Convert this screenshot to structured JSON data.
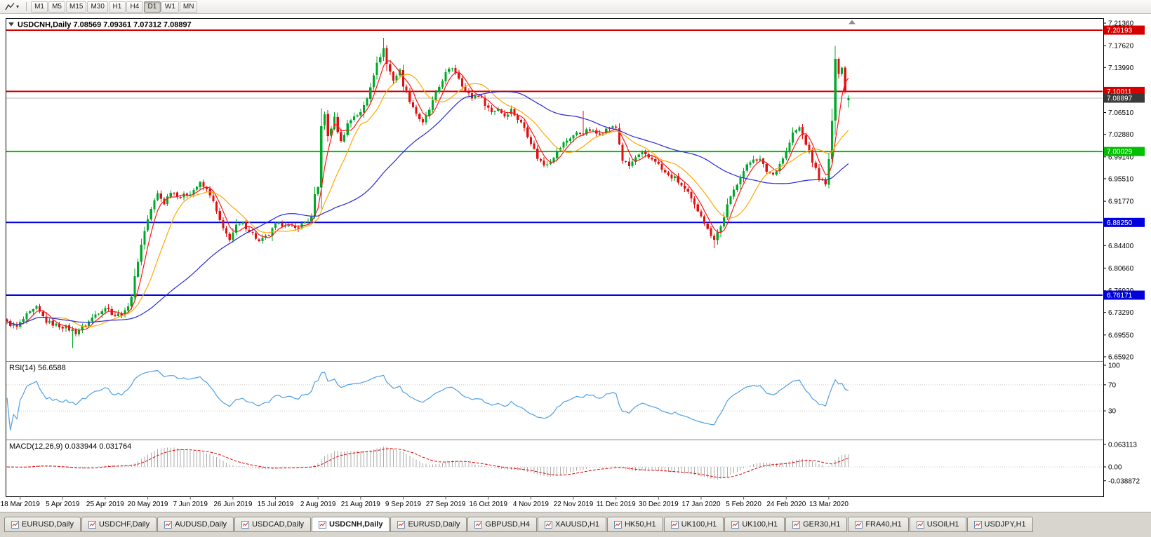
{
  "toolbar": {
    "timeframes": [
      "M1",
      "M5",
      "M15",
      "M30",
      "H1",
      "H4",
      "D1",
      "W1",
      "MN"
    ],
    "active_timeframe": "D1"
  },
  "chart": {
    "symbol": "USDCNH",
    "timeframe": "Daily",
    "title_text": "USDCNH,Daily 7.08569 7.09361 7.07312 7.08897",
    "open": "7.08569",
    "high": "7.09361",
    "low": "7.07312",
    "close": "7.08897"
  },
  "price_scale": {
    "ticks": [
      "7.21360",
      "7.17620",
      "7.13990",
      "7.10250",
      "7.06510",
      "7.02880",
      "6.99140",
      "6.95510",
      "6.91770",
      "6.88030",
      "6.84400",
      "6.80660",
      "6.76920",
      "6.73290",
      "6.69550",
      "6.65920"
    ],
    "levels": [
      {
        "value": "7.20193",
        "price": 7.20193,
        "color": "#D40000"
      },
      {
        "value": "7.10011",
        "price": 7.10011,
        "color": "#D40000"
      },
      {
        "value": "7.00029",
        "price": 7.00029,
        "color": "#00BE00"
      },
      {
        "value": "6.88250",
        "price": 6.8825,
        "color": "#0000DE"
      },
      {
        "value": "6.76171",
        "price": 6.76171,
        "color": "#0000DE"
      }
    ],
    "bid": {
      "value": "7.08897",
      "price": 7.08897,
      "label_bg": "#3A3A3A",
      "line_color": "#B8B8B8"
    }
  },
  "indicators": {
    "rsi": {
      "label": "RSI(14) 56.6588",
      "period": 14,
      "value": "56.6588",
      "ticks": [
        "100",
        "70",
        "30"
      ],
      "level_lines": [
        70,
        30
      ],
      "color": "#4D9FE6"
    },
    "macd": {
      "label": "MACD(12,26,9) 0.033944 0.031764",
      "fast": 12,
      "slow": 26,
      "signal": 9,
      "main_value": "0.033944",
      "signal_value": "0.031764",
      "ticks": [
        "0.063113",
        "0.00",
        "-0.038872"
      ],
      "histogram_color": "#ABABAB",
      "signal_color": "#E00000"
    }
  },
  "time_axis": {
    "labels": [
      "18 Mar 2019",
      "5 Apr 2019",
      "25 Apr 2019",
      "20 May 2019",
      "7 Jun 2019",
      "26 Jun 2019",
      "15 Jul 2019",
      "2 Aug 2019",
      "21 Aug 2019",
      "9 Sep 2019",
      "27 Sep 2019",
      "16 Oct 2019",
      "4 Nov 2019",
      "22 Nov 2019",
      "11 Dec 2019",
      "30 Dec 2019",
      "17 Jan 2020",
      "5 Feb 2020",
      "24 Feb 2020",
      "13 Mar 2020"
    ]
  },
  "tabs": {
    "items": [
      "EURUSD,Daily",
      "USDCHF,Daily",
      "AUDUSD,Daily",
      "USDCAD,Daily",
      "USDCNH,Daily",
      "EURUSD,Daily",
      "GBPUSD,H4",
      "XAUUSD,H1",
      "HK50,H1",
      "UK100,H1",
      "UK100,H1",
      "GER30,H1",
      "FRA40,H1",
      "USOil,H1",
      "USDJPY,H1"
    ],
    "active_index": 4
  },
  "chart_data": {
    "type": "candlestick",
    "symbol": "USDCNH",
    "timeframe": "Daily",
    "bars_total": 258,
    "ylim": [
      6.6592,
      7.2136
    ],
    "bull_color": "#00A82A",
    "bear_color": "#E01010",
    "close_anchors": [
      [
        0,
        6.716
      ],
      [
        3,
        6.708
      ],
      [
        6,
        6.728
      ],
      [
        9,
        6.74
      ],
      [
        12,
        6.718
      ],
      [
        15,
        6.712
      ],
      [
        18,
        6.708
      ],
      [
        21,
        6.7
      ],
      [
        24,
        6.712
      ],
      [
        27,
        6.73
      ],
      [
        30,
        6.742
      ],
      [
        33,
        6.728
      ],
      [
        36,
        6.733
      ],
      [
        38,
        6.76
      ],
      [
        40,
        6.82
      ],
      [
        42,
        6.87
      ],
      [
        44,
        6.905
      ],
      [
        46,
        6.93
      ],
      [
        48,
        6.915
      ],
      [
        50,
        6.935
      ],
      [
        53,
        6.925
      ],
      [
        56,
        6.932
      ],
      [
        59,
        6.947
      ],
      [
        62,
        6.93
      ],
      [
        64,
        6.9
      ],
      [
        66,
        6.87
      ],
      [
        68,
        6.856
      ],
      [
        70,
        6.876
      ],
      [
        72,
        6.88
      ],
      [
        75,
        6.864
      ],
      [
        77,
        6.85
      ],
      [
        80,
        6.862
      ],
      [
        82,
        6.878
      ],
      [
        85,
        6.88
      ],
      [
        88,
        6.872
      ],
      [
        90,
        6.88
      ],
      [
        92,
        6.886
      ],
      [
        93,
        6.89
      ],
      [
        94,
        6.926
      ],
      [
        95,
        6.94
      ],
      [
        96,
        7.045
      ],
      [
        97,
        7.06
      ],
      [
        98,
        7.026
      ],
      [
        100,
        7.055
      ],
      [
        102,
        7.016
      ],
      [
        104,
        7.046
      ],
      [
        106,
        7.06
      ],
      [
        108,
        7.064
      ],
      [
        110,
        7.09
      ],
      [
        112,
        7.13
      ],
      [
        114,
        7.16
      ],
      [
        115,
        7.172
      ],
      [
        116,
        7.146
      ],
      [
        118,
        7.12
      ],
      [
        120,
        7.134
      ],
      [
        121,
        7.112
      ],
      [
        123,
        7.086
      ],
      [
        125,
        7.064
      ],
      [
        127,
        7.046
      ],
      [
        129,
        7.07
      ],
      [
        131,
        7.096
      ],
      [
        133,
        7.12
      ],
      [
        134,
        7.13
      ],
      [
        136,
        7.14
      ],
      [
        138,
        7.124
      ],
      [
        140,
        7.1
      ],
      [
        142,
        7.09
      ],
      [
        144,
        7.095
      ],
      [
        146,
        7.08
      ],
      [
        148,
        7.066
      ],
      [
        150,
        7.072
      ],
      [
        152,
        7.06
      ],
      [
        154,
        7.07
      ],
      [
        156,
        7.054
      ],
      [
        158,
        7.04
      ],
      [
        160,
        7.016
      ],
      [
        162,
        6.99
      ],
      [
        164,
        6.978
      ],
      [
        166,
        6.986
      ],
      [
        168,
        7.0
      ],
      [
        170,
        7.014
      ],
      [
        172,
        7.024
      ],
      [
        174,
        7.03
      ],
      [
        176,
        7.032
      ],
      [
        178,
        7.036
      ],
      [
        180,
        7.03
      ],
      [
        182,
        7.034
      ],
      [
        184,
        7.04
      ],
      [
        186,
        7.04
      ],
      [
        188,
        6.986
      ],
      [
        190,
        6.976
      ],
      [
        192,
        6.99
      ],
      [
        194,
        6.996
      ],
      [
        196,
        6.99
      ],
      [
        198,
        6.986
      ],
      [
        200,
        6.97
      ],
      [
        202,
        6.96
      ],
      [
        204,
        6.956
      ],
      [
        206,
        6.944
      ],
      [
        208,
        6.93
      ],
      [
        210,
        6.91
      ],
      [
        212,
        6.896
      ],
      [
        214,
        6.87
      ],
      [
        216,
        6.856
      ],
      [
        218,
        6.876
      ],
      [
        220,
        6.91
      ],
      [
        222,
        6.936
      ],
      [
        224,
        6.96
      ],
      [
        226,
        6.976
      ],
      [
        228,
        6.99
      ],
      [
        230,
        6.986
      ],
      [
        232,
        6.968
      ],
      [
        234,
        6.962
      ],
      [
        236,
        6.98
      ],
      [
        238,
        7.0
      ],
      [
        240,
        7.03
      ],
      [
        242,
        7.04
      ],
      [
        244,
        7.014
      ],
      [
        246,
        6.984
      ],
      [
        248,
        6.958
      ],
      [
        250,
        6.944
      ],
      [
        251,
        6.988
      ],
      [
        252,
        7.05
      ],
      [
        253,
        7.155
      ],
      [
        254,
        7.13
      ],
      [
        255,
        7.14
      ],
      [
        256,
        7.1
      ],
      [
        257,
        7.089
      ]
    ],
    "wick_overrides": {
      "20": {
        "low": 6.674
      },
      "96": {
        "low": 6.938
      },
      "115": {
        "high": 7.189
      },
      "176": {
        "high": 7.068
      },
      "216": {
        "low": 6.84
      },
      "253": {
        "high": 7.176
      }
    },
    "last_bar": {
      "open": 7.08569,
      "high": 7.09361,
      "low": 7.07312,
      "close": 7.08897
    },
    "moving_averages": [
      {
        "period": 5,
        "color": "#FF1414"
      },
      {
        "period": 13,
        "color": "#FFA800"
      },
      {
        "period": 45,
        "color": "#2828D8"
      }
    ]
  }
}
